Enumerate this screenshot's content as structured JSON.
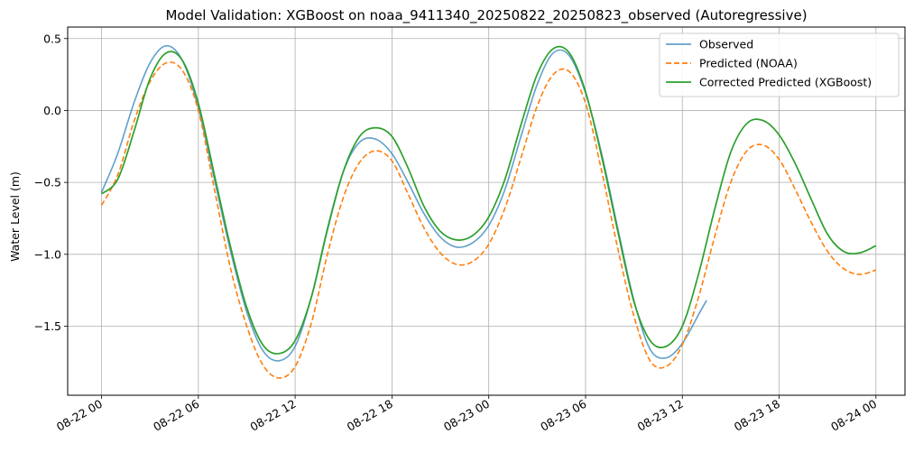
{
  "chart_data": {
    "type": "line",
    "title": "Model Validation: XGBoost on noaa_9411340_20250822_20250823_observed (Autoregressive)",
    "xlabel": "",
    "ylabel": "Water Level (m)",
    "x_tick_labels": [
      "08-22 00",
      "08-22 06",
      "08-22 12",
      "08-22 18",
      "08-23 00",
      "08-23 06",
      "08-23 12",
      "08-23 18",
      "08-24 00"
    ],
    "y_tick_labels": [
      "0.5",
      "0.0",
      "−0.5",
      "−1.0",
      "−1.5"
    ],
    "y_ticks": [
      0.5,
      0.0,
      -0.5,
      -1.0,
      -1.5
    ],
    "xlim_hours": [
      -2.1,
      49.8
    ],
    "ylim": [
      -1.98,
      0.58
    ],
    "grid": true,
    "legend_position": "top-right",
    "series": [
      {
        "name": "Observed",
        "color": "#1f77b4",
        "style": "solid",
        "x_hours": [
          0,
          1,
          2,
          3,
          4,
          5,
          6,
          7,
          8,
          9,
          10,
          11,
          12,
          13,
          14,
          15,
          16,
          17,
          18,
          19,
          20,
          21,
          22,
          23,
          24,
          25,
          26,
          27,
          28,
          29,
          30,
          31,
          32,
          33,
          34,
          35,
          36,
          37,
          37.5
        ],
        "values": [
          -0.57,
          -0.3,
          0.05,
          0.33,
          0.45,
          0.35,
          0.02,
          -0.48,
          -0.98,
          -1.4,
          -1.67,
          -1.74,
          -1.64,
          -1.3,
          -0.82,
          -0.42,
          -0.22,
          -0.2,
          -0.3,
          -0.5,
          -0.72,
          -0.88,
          -0.95,
          -0.92,
          -0.8,
          -0.55,
          -0.18,
          0.18,
          0.4,
          0.38,
          0.12,
          -0.3,
          -0.82,
          -1.32,
          -1.66,
          -1.72,
          -1.62,
          -1.42,
          -1.32
        ]
      },
      {
        "name": "Predicted (NOAA)",
        "color": "#ff7f0e",
        "style": "dashed",
        "x_hours": [
          0,
          1,
          2,
          3,
          4,
          5,
          6,
          7,
          8,
          9,
          10,
          11,
          12,
          13,
          14,
          15,
          16,
          17,
          18,
          19,
          20,
          21,
          22,
          23,
          24,
          25,
          26,
          27,
          28,
          29,
          30,
          31,
          32,
          33,
          34,
          35,
          36,
          37,
          38,
          39,
          40,
          41,
          42,
          43,
          44,
          45,
          46,
          47,
          48
        ],
        "values": [
          -0.66,
          -0.45,
          -0.08,
          0.2,
          0.33,
          0.28,
          0.0,
          -0.55,
          -1.1,
          -1.5,
          -1.77,
          -1.86,
          -1.78,
          -1.48,
          -1.0,
          -0.6,
          -0.36,
          -0.28,
          -0.35,
          -0.58,
          -0.82,
          -0.99,
          -1.07,
          -1.05,
          -0.93,
          -0.68,
          -0.33,
          0.03,
          0.25,
          0.27,
          0.05,
          -0.42,
          -0.96,
          -1.43,
          -1.74,
          -1.78,
          -1.63,
          -1.3,
          -0.88,
          -0.5,
          -0.28,
          -0.24,
          -0.34,
          -0.55,
          -0.78,
          -0.98,
          -1.1,
          -1.14,
          -1.11
        ]
      },
      {
        "name": "Corrected Predicted (XGBoost)",
        "color": "#2ca02c",
        "style": "solid",
        "x_hours": [
          0,
          1,
          2,
          3,
          4,
          5,
          6,
          7,
          8,
          9,
          10,
          11,
          12,
          13,
          14,
          15,
          16,
          17,
          18,
          19,
          20,
          21,
          22,
          23,
          24,
          25,
          26,
          27,
          28,
          29,
          30,
          31,
          32,
          33,
          34,
          35,
          36,
          37,
          38,
          39,
          40,
          41,
          42,
          43,
          44,
          45,
          46,
          47,
          48
        ],
        "values": [
          -0.58,
          -0.48,
          -0.15,
          0.22,
          0.4,
          0.35,
          0.05,
          -0.45,
          -0.95,
          -1.37,
          -1.63,
          -1.69,
          -1.6,
          -1.3,
          -0.83,
          -0.42,
          -0.18,
          -0.12,
          -0.18,
          -0.4,
          -0.67,
          -0.84,
          -0.9,
          -0.87,
          -0.74,
          -0.48,
          -0.1,
          0.25,
          0.43,
          0.4,
          0.13,
          -0.32,
          -0.84,
          -1.33,
          -1.6,
          -1.64,
          -1.5,
          -1.14,
          -0.69,
          -0.29,
          -0.09,
          -0.07,
          -0.17,
          -0.37,
          -0.62,
          -0.86,
          -0.98,
          -0.99,
          -0.94
        ]
      }
    ]
  }
}
